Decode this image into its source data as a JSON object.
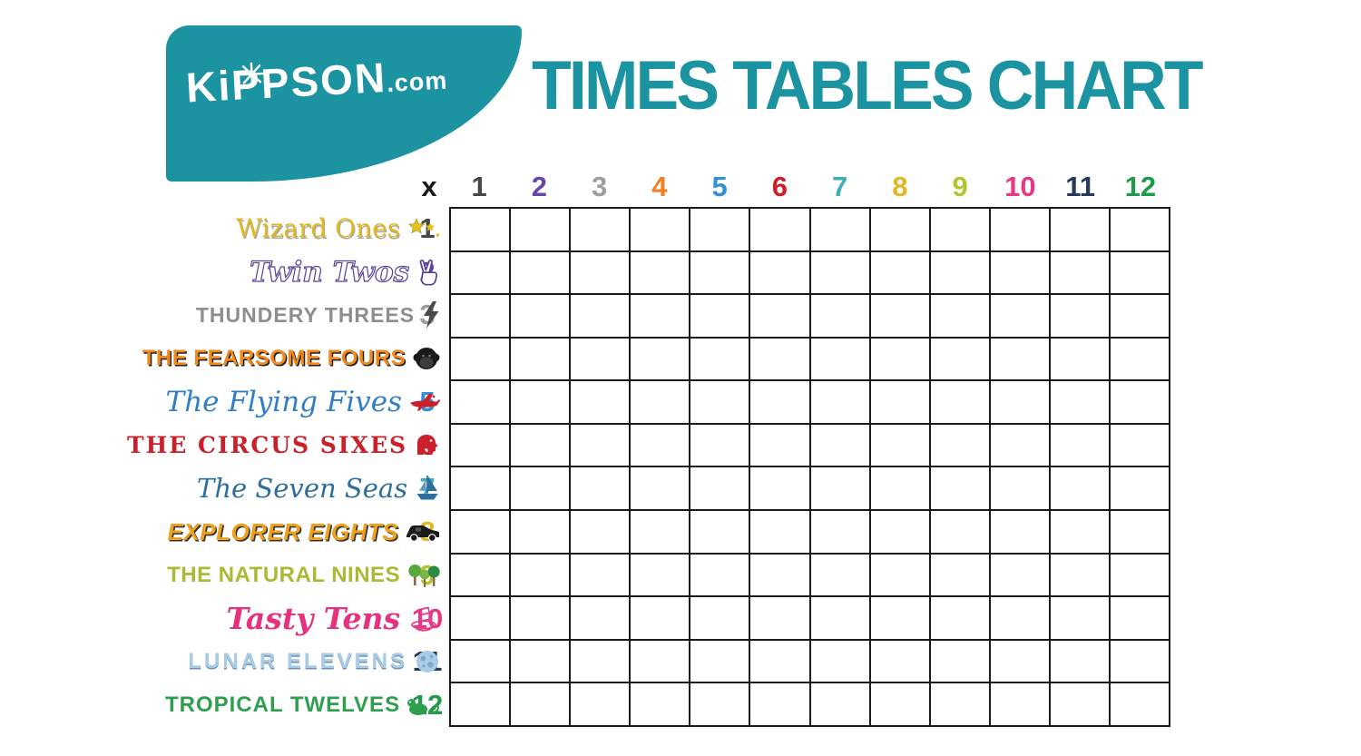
{
  "page": {
    "background": "#FFFFFF"
  },
  "brand": {
    "logo_text": "KiPPSON",
    "logo_suffix": ".com",
    "blob_color": "#1B93A1",
    "logo_text_color": "#FFFFFF"
  },
  "title": {
    "text": "TIMES TABLES CHART",
    "color": "#1B93A1"
  },
  "table": {
    "corner_label": "x",
    "line_color": "#1A1A1A",
    "grid": {
      "columns": 12,
      "rows": 12,
      "cells_empty": true
    },
    "columns": [
      {
        "label": "1",
        "color": "#474747"
      },
      {
        "label": "2",
        "color": "#6B44A8"
      },
      {
        "label": "3",
        "color": "#9D9DA1"
      },
      {
        "label": "4",
        "color": "#F08022"
      },
      {
        "label": "5",
        "color": "#3390D4"
      },
      {
        "label": "6",
        "color": "#C9202B"
      },
      {
        "label": "7",
        "color": "#3FAEB8"
      },
      {
        "label": "8",
        "color": "#E2B822"
      },
      {
        "label": "9",
        "color": "#B5C42E"
      },
      {
        "label": "10",
        "color": "#E73884"
      },
      {
        "label": "11",
        "color": "#27395F"
      },
      {
        "label": "12",
        "color": "#1F9A4B"
      }
    ],
    "rows": [
      {
        "number": "1",
        "number_color": "#474747",
        "name": "Wizard Ones",
        "name_color": "#E3B81E",
        "icon": "stars-icon",
        "font": "wizard"
      },
      {
        "number": "2",
        "number_color": "#6B44A8",
        "name": "Twin Twos",
        "name_color": "#FFFFFF",
        "icon": "peace-sign-icon",
        "font": "outline"
      },
      {
        "number": "3",
        "number_color": "#9D9DA1",
        "name": "THUNDERY THREES",
        "name_color": "#8E8E8E",
        "icon": "lightning-icon",
        "font": "caps"
      },
      {
        "number": "4",
        "number_color": "#F08022",
        "name": "THE FEARSOME FOURS",
        "name_color": "#F08A1D",
        "icon": "gorilla-icon",
        "font": "heavy"
      },
      {
        "number": "5",
        "number_color": "#3390D4",
        "name": "The Flying Fives",
        "name_color": "#2F7EC7",
        "icon": "airplane-icon",
        "font": "script"
      },
      {
        "number": "6",
        "number_color": "#C9202B",
        "name": "THE CIRCUS SIXES",
        "name_color": "#C9202B",
        "icon": "elephant-icon",
        "font": "circus"
      },
      {
        "number": "7",
        "number_color": "#3FAEB8",
        "name": "The Seven Seas",
        "name_color": "#2C6E9E",
        "icon": "sailboat-icon",
        "font": "script2"
      },
      {
        "number": "8",
        "number_color": "#E2B822",
        "name": "EXPLORER EIGHTS",
        "name_color": "#EFA11C",
        "icon": "safari-jeep-icon",
        "font": "explorer"
      },
      {
        "number": "9",
        "number_color": "#B5C42E",
        "name": "THE NATURAL NINES",
        "name_color": "#A9BA35",
        "icon": "trees-icon",
        "font": "hand"
      },
      {
        "number": "10",
        "number_color": "#E73884",
        "name": "Tasty Tens",
        "name_color": "#E5317E",
        "icon": "dessert-icon",
        "font": "tasty"
      },
      {
        "number": "11",
        "number_color": "#27395F",
        "name": "LUNAR ELEVENS",
        "name_color": "#A9CCE6",
        "icon": "moon-icon",
        "font": "techno"
      },
      {
        "number": "12",
        "number_color": "#1F9A4B",
        "name": "TROPICAL TWELVES",
        "name_color": "#2E9E4F",
        "icon": "monkey-icon",
        "font": "tropical"
      }
    ]
  }
}
